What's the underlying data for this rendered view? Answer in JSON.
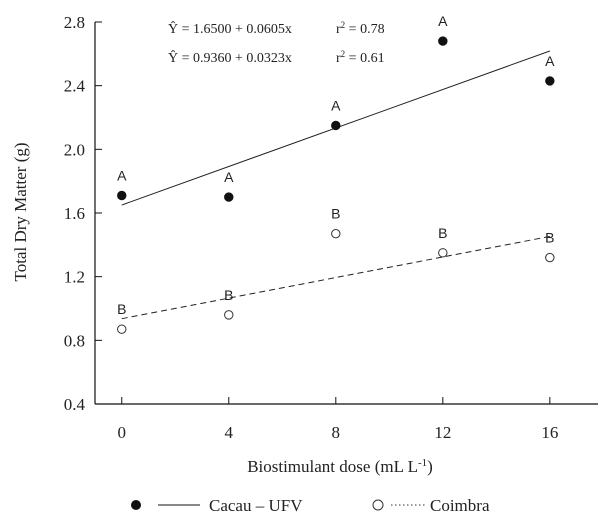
{
  "chart_data": {
    "type": "scatter",
    "xlabel": "Biostimulant dose (mL L",
    "xlabel_sup": "-1",
    "xlabel_suffix": ")",
    "ylabel": "Total Dry Matter (g)",
    "x_ticks": [
      "0",
      "4",
      "8",
      "12",
      "16"
    ],
    "y_ticks": [
      "0.4",
      "0.8",
      "1.2",
      "1.6",
      "2.0",
      "2.4",
      "2.8"
    ],
    "xlim": [
      -1,
      17.8
    ],
    "ylim": [
      0.4,
      2.8
    ],
    "grid": false,
    "legend_position": "bottom",
    "series": [
      {
        "name": "Cacau – UFV",
        "marker": "filled-circle",
        "line_style": "solid",
        "x": [
          0,
          4,
          8,
          12,
          16
        ],
        "y": [
          1.71,
          1.7,
          2.15,
          2.68,
          2.43
        ],
        "labels": [
          "A",
          "A",
          "A",
          "A",
          "A"
        ],
        "fit": {
          "intercept": 1.65,
          "slope": 0.0605
        }
      },
      {
        "name": "Coimbra",
        "marker": "open-circle",
        "line_style": "dashed",
        "x": [
          0,
          4,
          8,
          12,
          16
        ],
        "y": [
          0.87,
          0.96,
          1.47,
          1.35,
          1.32
        ],
        "labels": [
          "B",
          "B",
          "B",
          "B",
          "B"
        ],
        "fit": {
          "intercept": 0.936,
          "slope": 0.0323
        }
      }
    ],
    "annotations": {
      "eq1": "Ŷ = 1.6500 + 0.0605x",
      "r2_1_label": "r",
      "r2_1_sup": "2",
      "r2_1_value": " = 0.78",
      "eq2": "Ŷ = 0.9360 + 0.0323x",
      "r2_2_label": "r",
      "r2_2_sup": "2",
      "r2_2_value": " = 0.61"
    },
    "legend": {
      "item1": "Cacau – UFV",
      "item2": "Coimbra"
    }
  }
}
